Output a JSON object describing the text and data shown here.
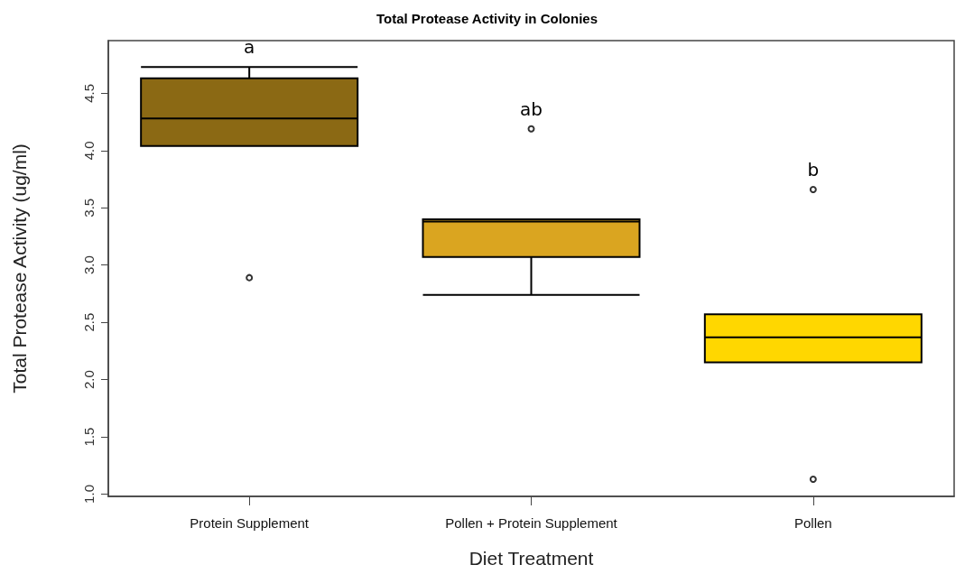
{
  "chart_data": {
    "type": "box",
    "title": "Total Protease Activity in Colonies",
    "xlabel": "Diet Treatment",
    "ylabel": "Total Protease Activity (ug/ml)",
    "categories": [
      "Protein Supplement",
      "Pollen + Protein Supplement",
      "Pollen"
    ],
    "colors": [
      "#8b6914",
      "#daa520",
      "#ffd700"
    ],
    "boxes": [
      {
        "low": 4.04,
        "q1": 4.04,
        "median": 4.28,
        "q3": 4.63,
        "high": 4.73,
        "outliers": [
          2.89
        ]
      },
      {
        "low": 2.74,
        "q1": 3.07,
        "median": 3.38,
        "q3": 3.4,
        "high": 3.4,
        "outliers": [
          4.19
        ]
      },
      {
        "low": 2.15,
        "q1": 2.15,
        "median": 2.37,
        "q3": 2.57,
        "high": 2.57,
        "outliers": [
          3.66,
          1.13
        ]
      }
    ],
    "ylim": [
      0.98,
      4.96
    ],
    "yticks": [
      {
        "value": 1,
        "label": "1.0"
      },
      1.5,
      {
        "value": 2,
        "label": "2.0"
      },
      2.5,
      {
        "value": 3,
        "label": "3.0"
      },
      3.5,
      {
        "value": 4,
        "label": "4.0"
      },
      4.5
    ],
    "annotations": [
      "a",
      "ab",
      "b"
    ],
    "grid": false
  }
}
